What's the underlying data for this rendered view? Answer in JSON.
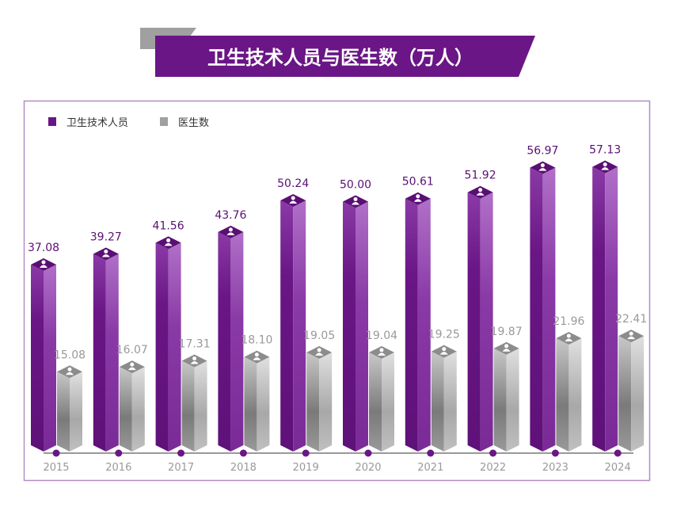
{
  "chart_data": {
    "type": "bar",
    "title": "卫生技术人员与医生数（万人）",
    "categories": [
      "2015",
      "2016",
      "2017",
      "2018",
      "2019",
      "2020",
      "2021",
      "2022",
      "2023",
      "2024"
    ],
    "series": [
      {
        "name": "卫生技术人员",
        "color": "#6a1686",
        "values": [
          37.08,
          39.27,
          41.56,
          43.76,
          50.24,
          50.0,
          50.61,
          51.92,
          56.97,
          57.13
        ]
      },
      {
        "name": "医生数",
        "color": "#a0a0a0",
        "values": [
          15.08,
          16.07,
          17.31,
          18.1,
          19.05,
          19.04,
          19.25,
          19.87,
          21.96,
          22.41
        ]
      }
    ],
    "value_labels": [
      [
        "37.08",
        "39.27",
        "41.56",
        "43.76",
        "50.24",
        "50.00",
        "50.61",
        "51.92",
        "56.97",
        "57.13"
      ],
      [
        "15.08",
        "16.07",
        "17.31",
        "18.10",
        "19.05",
        "19.04",
        "19.25",
        "19.87",
        "21.96",
        "22.41"
      ]
    ],
    "legend": "top-left",
    "ylim": [
      0,
      60
    ],
    "grid": false,
    "xlabel": "",
    "ylabel": ""
  }
}
